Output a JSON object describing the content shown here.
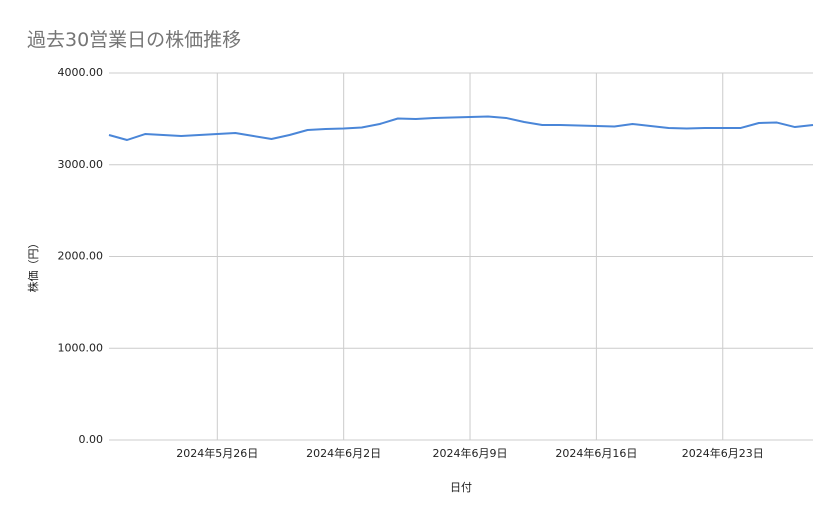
{
  "chart_data": {
    "type": "line",
    "title": "過去30営業日の株価推移",
    "x_label": "日付",
    "y_label": "株価（円）",
    "x": [
      "2024-05-20",
      "2024-05-21",
      "2024-05-22",
      "2024-05-23",
      "2024-05-24",
      "2024-05-25",
      "2024-05-26",
      "2024-05-27",
      "2024-05-28",
      "2024-05-29",
      "2024-05-30",
      "2024-05-31",
      "2024-06-01",
      "2024-06-02",
      "2024-06-03",
      "2024-06-04",
      "2024-06-05",
      "2024-06-06",
      "2024-06-07",
      "2024-06-08",
      "2024-06-09",
      "2024-06-10",
      "2024-06-11",
      "2024-06-12",
      "2024-06-13",
      "2024-06-14",
      "2024-06-15",
      "2024-06-16",
      "2024-06-17",
      "2024-06-18",
      "2024-06-19",
      "2024-06-20",
      "2024-06-21",
      "2024-06-22",
      "2024-06-23",
      "2024-06-24",
      "2024-06-25",
      "2024-06-26",
      "2024-06-27",
      "2024-06-28"
    ],
    "series": [
      {
        "name": "株価",
        "color": "#4a86d8",
        "values": [
          3324,
          3270,
          3335,
          3324,
          3313,
          3324,
          3335,
          3346,
          3313,
          3281,
          3324,
          3379,
          3390,
          3395,
          3406,
          3444,
          3504,
          3499,
          3510,
          3515,
          3520,
          3526,
          3510,
          3466,
          3433,
          3433,
          3428,
          3422,
          3417,
          3444,
          3422,
          3401,
          3395,
          3401,
          3401,
          3401,
          3455,
          3460,
          3411,
          3433
        ]
      }
    ],
    "xlim": [
      "2024-05-20",
      "2024-06-28"
    ],
    "xticks": [
      {
        "value": "2024-05-26",
        "label": "2024年5月26日"
      },
      {
        "value": "2024-06-02",
        "label": "2024年6月2日"
      },
      {
        "value": "2024-06-09",
        "label": "2024年6月9日"
      },
      {
        "value": "2024-06-16",
        "label": "2024年6月16日"
      },
      {
        "value": "2024-06-23",
        "label": "2024年6月23日"
      }
    ],
    "ylim": [
      0,
      4000
    ],
    "yticks": [
      {
        "value": 0,
        "label": "0.00"
      },
      {
        "value": 1000,
        "label": "1000.00"
      },
      {
        "value": 2000,
        "label": "2000.00"
      },
      {
        "value": 3000,
        "label": "3000.00"
      },
      {
        "value": 4000,
        "label": "4000.00"
      }
    ],
    "grid": true
  }
}
